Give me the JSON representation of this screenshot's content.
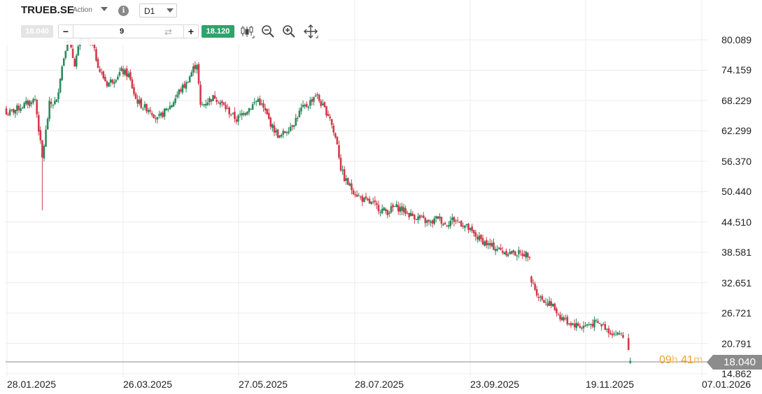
{
  "header": {
    "symbol": "TRUEB.SE",
    "symbol_type": "Action",
    "info_icon": "i",
    "timeframe": "D1"
  },
  "trade": {
    "bid": "18.040",
    "quantity": "9",
    "ask": "18.120",
    "minus_label": "−",
    "plus_label": "+"
  },
  "toolbar": {
    "icons": [
      "candlestick-icon",
      "zoom-out-icon",
      "zoom-in-icon",
      "move-icon"
    ]
  },
  "countdown": {
    "hours": "09",
    "hours_unit": "h",
    "minutes": "41",
    "minutes_unit": "m"
  },
  "colors": {
    "up": "#2a8a5c",
    "down": "#d23a4a",
    "grid": "#ececec",
    "last_price_line": "#888888",
    "last_price_tag": "#8c8c8c",
    "ask": "#2fa36b",
    "countdown": "#f0a030"
  },
  "chart_data": {
    "type": "candlestick",
    "y_axis_ticks": [
      "80.089",
      "74.159",
      "68.229",
      "62.299",
      "56.370",
      "50.440",
      "44.510",
      "38.581",
      "32.651",
      "26.721",
      "20.791",
      "14.862"
    ],
    "x_axis_ticks": [
      "28.01.2025",
      "26.03.2025",
      "27.05.2025",
      "28.07.2025",
      "23.09.2025",
      "19.11.2025",
      "07.01.2026"
    ],
    "ylim": [
      14.862,
      80.089
    ],
    "last_price": "18.040",
    "grid": true,
    "close_path": [
      [
        0,
        65.5
      ],
      [
        8,
        67.0
      ],
      [
        16,
        68.5
      ],
      [
        20,
        56.9
      ],
      [
        24,
        67.5
      ],
      [
        28,
        68.0
      ],
      [
        30,
        73.0
      ],
      [
        34,
        80.5
      ],
      [
        38,
        75.5
      ],
      [
        42,
        81.0
      ],
      [
        48,
        79.0
      ],
      [
        52,
        74.0
      ],
      [
        56,
        71.5
      ],
      [
        60,
        72.5
      ],
      [
        64,
        74.0
      ],
      [
        68,
        73.2
      ],
      [
        72,
        68.5
      ],
      [
        76,
        67.0
      ],
      [
        80,
        66.5
      ],
      [
        84,
        64.5
      ],
      [
        88,
        66.0
      ],
      [
        92,
        67.5
      ],
      [
        96,
        70.0
      ],
      [
        100,
        71.5
      ],
      [
        104,
        74.5
      ],
      [
        106,
        75.5
      ],
      [
        108,
        67.0
      ],
      [
        112,
        68.2
      ],
      [
        116,
        69.0
      ],
      [
        120,
        67.5
      ],
      [
        124,
        66.0
      ],
      [
        128,
        64.5
      ],
      [
        132,
        66.0
      ],
      [
        136,
        67.0
      ],
      [
        140,
        68.5
      ],
      [
        144,
        66.0
      ],
      [
        148,
        63.0
      ],
      [
        152,
        61.0
      ],
      [
        156,
        62.5
      ],
      [
        160,
        64.0
      ],
      [
        164,
        66.5
      ],
      [
        168,
        67.5
      ],
      [
        172,
        69.5
      ],
      [
        176,
        67.0
      ],
      [
        180,
        65.0
      ],
      [
        182,
        62.0
      ],
      [
        184,
        60.0
      ],
      [
        186,
        55.0
      ],
      [
        188,
        53.0
      ],
      [
        192,
        51.0
      ],
      [
        196,
        49.5
      ],
      [
        200,
        48.5
      ],
      [
        204,
        48.0
      ],
      [
        208,
        47.0
      ],
      [
        212,
        46.5
      ],
      [
        216,
        47.5
      ],
      [
        220,
        47.0
      ],
      [
        224,
        46.0
      ],
      [
        228,
        45.5
      ],
      [
        232,
        44.8
      ],
      [
        236,
        44.2
      ],
      [
        240,
        45.5
      ],
      [
        244,
        44.0
      ],
      [
        248,
        45.0
      ],
      [
        252,
        44.5
      ],
      [
        256,
        43.5
      ],
      [
        260,
        42.0
      ],
      [
        264,
        41.0
      ],
      [
        268,
        40.0
      ],
      [
        272,
        39.5
      ],
      [
        276,
        38.8
      ],
      [
        280,
        38.5
      ],
      [
        284,
        38.4
      ],
      [
        288,
        38.3
      ],
      [
        291,
        38.2
      ],
      [
        292,
        33.0
      ],
      [
        296,
        30.0
      ],
      [
        300,
        29.0
      ],
      [
        304,
        28.0
      ],
      [
        308,
        26.0
      ],
      [
        312,
        25.0
      ],
      [
        316,
        24.5
      ],
      [
        320,
        24.0
      ],
      [
        324,
        24.5
      ],
      [
        328,
        24.8
      ],
      [
        332,
        24.2
      ],
      [
        336,
        23.0
      ],
      [
        340,
        22.5
      ],
      [
        342,
        22.8
      ],
      [
        343,
        22.3
      ],
      [
        347,
        18.04
      ]
    ]
  }
}
